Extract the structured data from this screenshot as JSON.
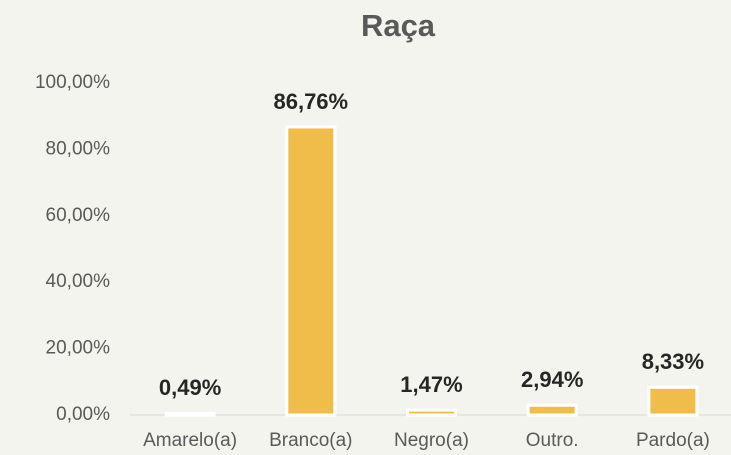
{
  "chart_data": {
    "type": "bar",
    "title": "Raça",
    "categories": [
      "Amarelo(a)",
      "Branco(a)",
      "Negro(a)",
      "Outro.",
      "Pardo(a)"
    ],
    "values": [
      0.49,
      86.76,
      1.47,
      2.94,
      8.33
    ],
    "value_labels": [
      "0,49%",
      "86,76%",
      "1,47%",
      "2,94%",
      "8,33%"
    ],
    "color": "#f0bc4a",
    "ylim": [
      0,
      100
    ],
    "yticks": [
      {
        "value": 0,
        "label": "0,00%"
      },
      {
        "value": 20,
        "label": "20,00%"
      },
      {
        "value": 40,
        "label": "40,00%"
      },
      {
        "value": 60,
        "label": "60,00%"
      },
      {
        "value": 80,
        "label": "80,00%"
      },
      {
        "value": 100,
        "label": "100,00%"
      }
    ],
    "grid": false
  }
}
